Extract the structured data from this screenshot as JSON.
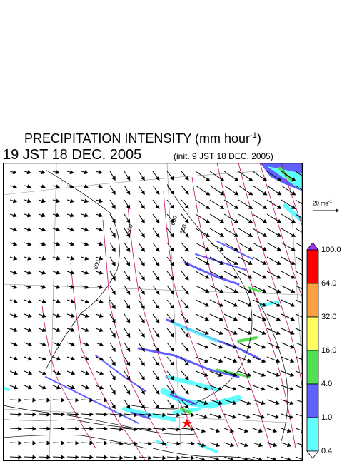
{
  "header": {
    "title": "PRECIPITATION INTENSITY (mm hour",
    "title_exp": "-1",
    "title_end": ")",
    "valid_time": "19 JST 18 DEC. 2005",
    "init_time": "(init. 9 JST 18 DEC. 2005)"
  },
  "wind_scale": {
    "label": "20 ms",
    "label_exp": "-1"
  },
  "contour_labels": [
    "600",
    "600",
    "600",
    "600"
  ],
  "colorbar": {
    "levels": [
      "100.0",
      "64.0",
      "32.0",
      "16.0",
      "4.0",
      "1.0",
      "0.4"
    ],
    "colors": [
      "#ff0000",
      "#ffa040",
      "#ffff60",
      "#50e050",
      "#6060ff",
      "#60ffff"
    ],
    "over_color": "#a030ff",
    "under_color": "#ffffff"
  },
  "colors": {
    "contour": "#c0106a",
    "coast": "#000000",
    "grid": "#909090"
  }
}
